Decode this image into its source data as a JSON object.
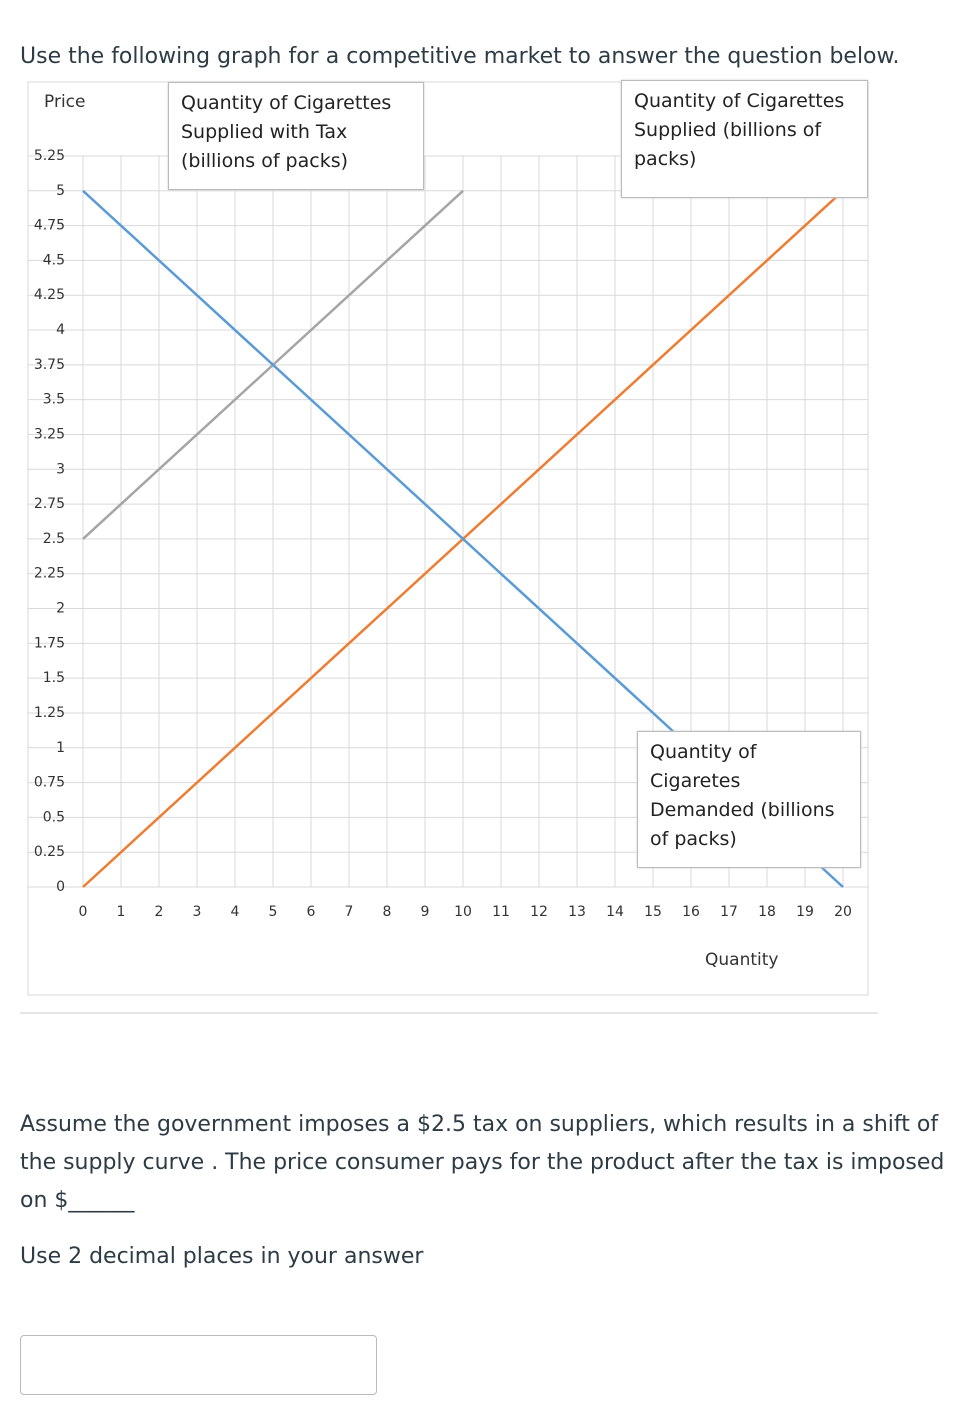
{
  "intro": "Use the following graph for a competitive market to answer the question below.",
  "chart_data": {
    "type": "line",
    "y_label": "Price",
    "x_label": "Quantity",
    "xlim": [
      0,
      20
    ],
    "xticks": [
      0,
      1,
      2,
      3,
      4,
      5,
      6,
      7,
      8,
      9,
      10,
      11,
      12,
      13,
      14,
      15,
      16,
      17,
      18,
      19,
      20
    ],
    "ylim": [
      0,
      5.25
    ],
    "yticks": [
      0,
      0.25,
      0.5,
      0.75,
      1,
      1.25,
      1.5,
      1.75,
      2,
      2.25,
      2.5,
      2.75,
      3,
      3.25,
      3.5,
      3.75,
      4,
      4.25,
      4.5,
      4.75,
      5,
      5.25
    ],
    "grid": true,
    "series": [
      {
        "name": "Quantity of Cigarettes Supplied with Tax (billions of packs)",
        "color": "#a5a5a5",
        "x": [
          0,
          10
        ],
        "values": [
          2.5,
          5
        ]
      },
      {
        "name": "Quantity of Cigarettes Supplied (billions of packs)",
        "color": "#ed7d31",
        "x": [
          0,
          20
        ],
        "values": [
          0,
          5
        ]
      },
      {
        "name": "Quantity of Cigaretes Demanded (billions of packs)",
        "color": "#5b9bd5",
        "x": [
          0,
          20
        ],
        "values": [
          5,
          0
        ]
      }
    ]
  },
  "question": "Assume the government imposes a $2.5 tax on suppliers, which results in a shift of the supply curve . The price consumer pays for the product after the tax is imposed on $______",
  "instruction": "Use 2 decimal places in your answer"
}
